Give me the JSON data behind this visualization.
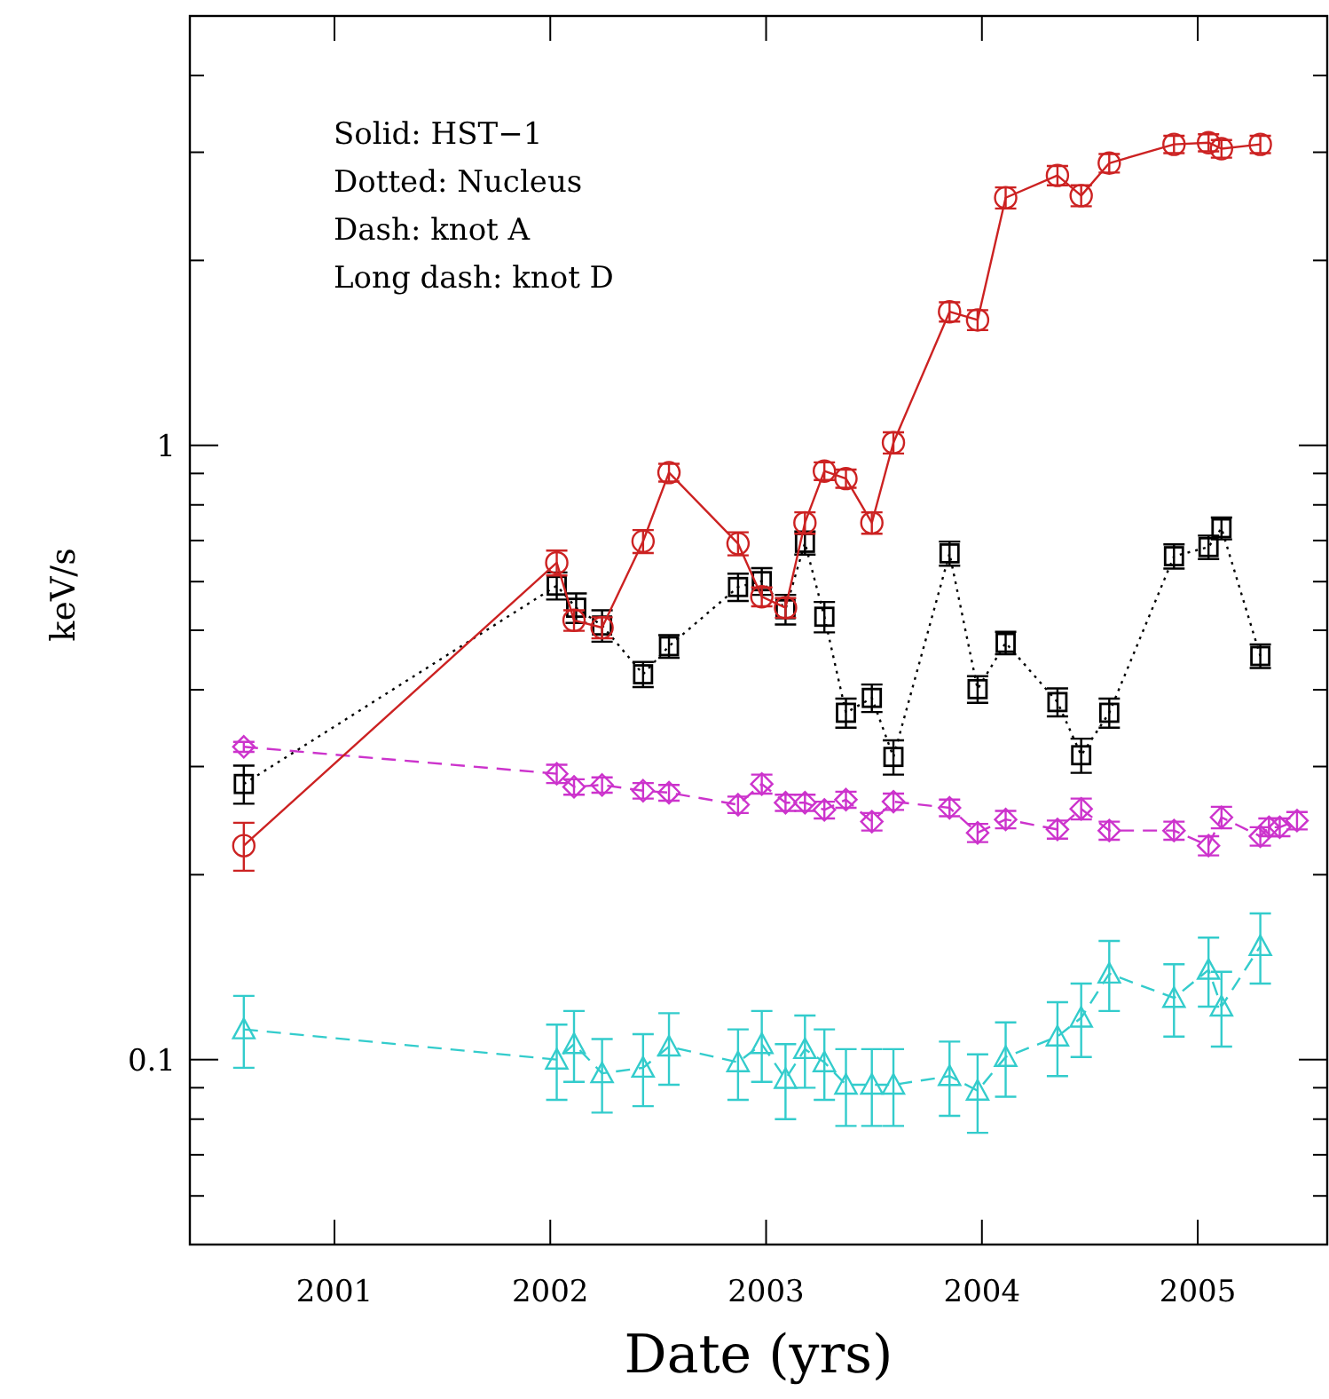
{
  "chart_data": {
    "type": "line",
    "xlabel": "Date (yrs)",
    "ylabel": "keV/s",
    "log": "y",
    "annotations": [
      "Solid: HST−1",
      "Dotted: Nucleus",
      "Dash: knot A",
      "Long dash: knot D"
    ],
    "xlim": [
      2000.33,
      2005.6
    ],
    "xticks": [
      2001,
      2002,
      2003,
      2004,
      2005
    ],
    "ylim": [
      0.05,
      5
    ],
    "yticks": [
      {
        "value": 0.05,
        "label": null
      },
      {
        "value": 0.06,
        "label": null
      },
      {
        "value": 0.07,
        "label": null
      },
      {
        "value": 0.08,
        "label": null
      },
      {
        "value": 0.09,
        "label": null
      },
      0.1,
      {
        "value": 0.2,
        "label": null
      },
      {
        "value": 0.3,
        "label": null
      },
      {
        "value": 0.4,
        "label": null
      },
      {
        "value": 0.5,
        "label": null
      },
      {
        "value": 0.6,
        "label": null
      },
      {
        "value": 0.7,
        "label": null
      },
      {
        "value": 0.8,
        "label": null
      },
      {
        "value": 0.9,
        "label": null
      },
      1,
      {
        "value": 2,
        "label": null
      },
      {
        "value": 3,
        "label": null
      },
      {
        "value": 4,
        "label": null
      },
      {
        "value": 5,
        "label": null
      }
    ],
    "series": [
      {
        "color": "#cc2222",
        "marker": "circle",
        "line_style": "solid",
        "x": [
          2000.58,
          2002.03,
          2002.11,
          2002.24,
          2002.43,
          2002.55,
          2002.87,
          2002.98,
          2003.09,
          2003.18,
          2003.27,
          2003.37,
          2003.49,
          2003.59,
          2003.85,
          2003.98,
          2004.11,
          2004.35,
          2004.46,
          2004.59,
          2004.89,
          2005.05,
          2005.11,
          2005.29
        ],
        "values": [
          0.223,
          0.644,
          0.519,
          0.505,
          0.698,
          0.903,
          0.692,
          0.567,
          0.544,
          0.748,
          0.908,
          0.883,
          0.748,
          1.01,
          1.65,
          1.6,
          2.53,
          2.75,
          2.55,
          2.88,
          3.09,
          3.11,
          3.04,
          3.09
        ],
        "errors": [
          0.02,
          0.03,
          0.02,
          0.02,
          0.03,
          0.03,
          0.03,
          0.02,
          0.02,
          0.03,
          0.03,
          0.03,
          0.03,
          0.04,
          0.06,
          0.06,
          0.1,
          0.1,
          0.1,
          0.1,
          0.1,
          0.1,
          0.1,
          0.1
        ]
      },
      {
        "color": "#000000",
        "marker": "square",
        "line_style": "dotted",
        "x": [
          2000.58,
          2002.03,
          2002.12,
          2002.24,
          2002.43,
          2002.55,
          2002.87,
          2002.98,
          2003.09,
          2003.18,
          2003.27,
          2003.37,
          2003.49,
          2003.59,
          2003.85,
          2003.98,
          2004.11,
          2004.35,
          2004.46,
          2004.59,
          2004.89,
          2005.05,
          2005.11,
          2005.29
        ],
        "values": [
          0.281,
          0.591,
          0.544,
          0.509,
          0.424,
          0.471,
          0.588,
          0.601,
          0.541,
          0.694,
          0.526,
          0.367,
          0.388,
          0.311,
          0.667,
          0.401,
          0.477,
          0.382,
          0.313,
          0.367,
          0.66,
          0.683,
          0.733,
          0.454
        ],
        "errors": [
          0.02,
          0.03,
          0.03,
          0.03,
          0.02,
          0.02,
          0.03,
          0.03,
          0.03,
          0.03,
          0.03,
          0.02,
          0.02,
          0.02,
          0.03,
          0.02,
          0.02,
          0.02,
          0.02,
          0.02,
          0.03,
          0.03,
          0.03,
          0.02
        ]
      },
      {
        "color": "#cc33cc",
        "marker": "diamond",
        "line_style": "dashed",
        "x": [
          2000.58,
          2002.03,
          2002.11,
          2002.24,
          2002.43,
          2002.55,
          2002.87,
          2002.98,
          2003.09,
          2003.18,
          2003.27,
          2003.37,
          2003.49,
          2003.59,
          2003.85,
          2003.98,
          2004.11,
          2004.35,
          2004.46,
          2004.59,
          2004.89,
          2005.05,
          2005.11,
          2005.29,
          2005.33,
          2005.38,
          2005.46
        ],
        "values": [
          0.323,
          0.292,
          0.278,
          0.28,
          0.274,
          0.272,
          0.26,
          0.281,
          0.262,
          0.262,
          0.255,
          0.265,
          0.244,
          0.263,
          0.257,
          0.234,
          0.246,
          0.237,
          0.256,
          0.236,
          0.236,
          0.223,
          0.248,
          0.231,
          0.239,
          0.239,
          0.245
        ],
        "errors": [
          0.006,
          0.01,
          0.008,
          0.008,
          0.008,
          0.008,
          0.008,
          0.01,
          0.008,
          0.008,
          0.008,
          0.008,
          0.008,
          0.008,
          0.008,
          0.008,
          0.008,
          0.008,
          0.01,
          0.008,
          0.008,
          0.008,
          0.01,
          0.008,
          0.008,
          0.008,
          0.008
        ]
      },
      {
        "color": "#33cccc",
        "marker": "triangle",
        "line_style": "dashed",
        "x": [
          2000.58,
          2002.03,
          2002.11,
          2002.24,
          2002.43,
          2002.55,
          2002.87,
          2002.98,
          2003.09,
          2003.18,
          2003.27,
          2003.37,
          2003.49,
          2003.59,
          2003.85,
          2003.98,
          2004.11,
          2004.35,
          2004.46,
          2004.59,
          2004.89,
          2005.05,
          2005.11,
          2005.29
        ],
        "values": [
          0.112,
          0.1,
          0.106,
          0.095,
          0.097,
          0.105,
          0.099,
          0.106,
          0.093,
          0.104,
          0.099,
          0.091,
          0.091,
          0.091,
          0.094,
          0.089,
          0.101,
          0.109,
          0.117,
          0.138,
          0.126,
          0.14,
          0.122,
          0.153
        ],
        "errors": [
          0.015,
          0.014,
          0.014,
          0.013,
          0.013,
          0.014,
          0.013,
          0.014,
          0.013,
          0.014,
          0.013,
          0.013,
          0.013,
          0.013,
          0.013,
          0.013,
          0.014,
          0.015,
          0.016,
          0.018,
          0.017,
          0.018,
          0.017,
          0.02
        ]
      }
    ]
  }
}
